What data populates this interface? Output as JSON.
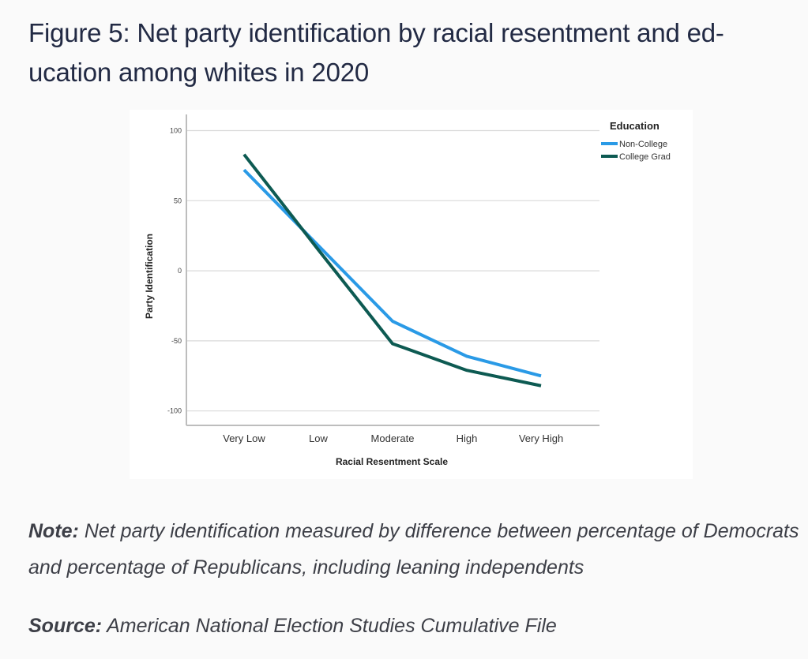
{
  "page": {
    "title": "Figure 5: Net party identification by racial resentment and ed-ucation among whites in 2020",
    "title_line1": "Figure 5: Net party identification by racial resentment and ed-",
    "title_line2": "ucation among whites in 2020",
    "note_label": "Note:",
    "note_text": " Net party identification measured by difference between percentage of Democrats and percentage of Republicans, including leaning independents",
    "source_label": "Source:",
    "source_text": " American National Election Studies Cumulative File"
  },
  "chart_data": {
    "type": "line",
    "title": "",
    "xlabel": "Racial Resentment Scale",
    "ylabel": "Party Identification",
    "categories": [
      "Very Low",
      "Low",
      "Moderate",
      "High",
      "Very High"
    ],
    "ylim": [
      -100,
      100
    ],
    "yticks": [
      100,
      50,
      0,
      -50,
      -100
    ],
    "grid": true,
    "legend": {
      "title": "Education",
      "placement": "top-right"
    },
    "series": [
      {
        "name": "Non-College",
        "color": "#2a9ae6",
        "values": [
          72,
          18,
          -36,
          -61,
          -75
        ]
      },
      {
        "name": "College Grad",
        "color": "#0d5a52",
        "values": [
          83,
          15,
          -52,
          -71,
          -82
        ]
      }
    ]
  }
}
